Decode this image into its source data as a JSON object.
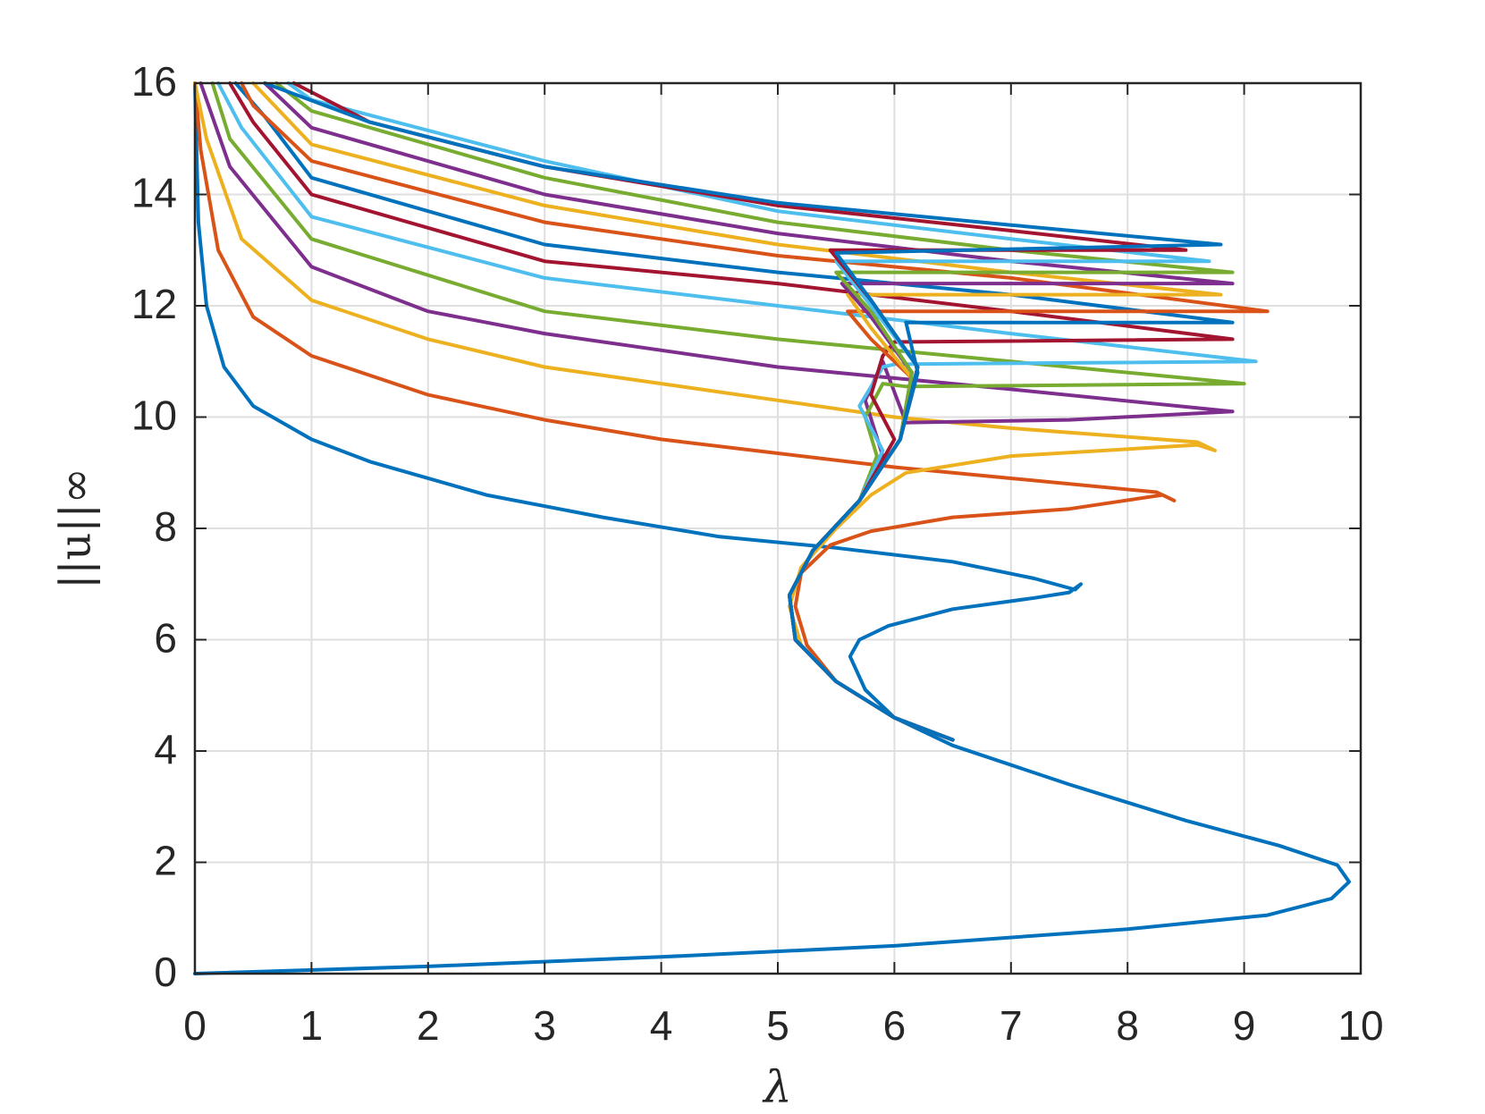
{
  "chart_data": {
    "type": "line",
    "xlabel": "λ",
    "ylabel": "||u||∞",
    "xlim": [
      0,
      10
    ],
    "ylim": [
      0,
      16
    ],
    "xticks": [
      0,
      1,
      2,
      3,
      4,
      5,
      6,
      7,
      8,
      9,
      10
    ],
    "yticks": [
      0,
      2,
      4,
      6,
      8,
      10,
      12,
      14,
      16
    ],
    "grid": true,
    "series": [
      {
        "color": "#0072BD",
        "x": [
          0,
          2,
          4,
          6,
          8,
          9.2,
          9.75,
          9.9,
          9.8,
          9.3,
          8.5,
          7.5,
          6.5,
          6,
          5.75,
          5.62,
          5.7,
          5.95,
          6.5,
          7.2,
          7.5,
          7.6,
          7.55,
          7.2,
          6.5,
          5.5,
          4.5,
          3.5,
          2.5,
          1.5,
          1,
          0.5,
          0.25,
          0.1,
          0.03,
          0
        ],
        "values": [
          0,
          0.13,
          0.3,
          0.5,
          0.8,
          1.05,
          1.35,
          1.65,
          1.95,
          2.3,
          2.75,
          3.4,
          4.1,
          4.6,
          5.1,
          5.7,
          6.0,
          6.25,
          6.55,
          6.75,
          6.85,
          7.0,
          6.9,
          7.1,
          7.4,
          7.65,
          7.85,
          8.2,
          8.6,
          9.2,
          9.6,
          10.2,
          10.9,
          12,
          13.5,
          16
        ]
      },
      {
        "color": "#D95319",
        "x": [
          6.5,
          6,
          5.5,
          5.25,
          5.15,
          5.2,
          5.45,
          5.8,
          6.5,
          7.5,
          8.3,
          8.4,
          8.25,
          7,
          6,
          5,
          4,
          3,
          2,
          1,
          0.5,
          0.2,
          0.05,
          0
        ],
        "values": [
          4.2,
          4.6,
          5.25,
          5.9,
          6.6,
          7.2,
          7.7,
          7.95,
          8.2,
          8.35,
          8.6,
          8.5,
          8.65,
          8.9,
          9.1,
          9.35,
          9.6,
          9.95,
          10.4,
          11.1,
          11.8,
          13,
          14.8,
          16
        ]
      },
      {
        "color": "#EDB120",
        "x": [
          6.5,
          6,
          5.5,
          5.2,
          5.1,
          5.2,
          5.5,
          5.8,
          6.1,
          7,
          8.6,
          8.75,
          8.6,
          7,
          6,
          5,
          4,
          3,
          2,
          1,
          0.4,
          0.1,
          0
        ],
        "values": [
          4.2,
          4.6,
          5.25,
          5.9,
          6.6,
          7.3,
          8.0,
          8.6,
          9.0,
          9.3,
          9.5,
          9.4,
          9.55,
          9.8,
          10.0,
          10.3,
          10.6,
          10.9,
          11.4,
          12.1,
          13.2,
          15,
          16
        ]
      },
      {
        "color": "#7E2F8E",
        "x": [
          6.5,
          6,
          5.5,
          5.15,
          5.1,
          5.3,
          5.7,
          5.9,
          5.75,
          5.9,
          6.1,
          7.5,
          8.9,
          7,
          5,
          3,
          2,
          1,
          0.3,
          0.05
        ],
        "values": [
          4.2,
          4.6,
          5.25,
          6.0,
          6.8,
          7.6,
          8.5,
          9.3,
          10.3,
          11.0,
          9.9,
          9.95,
          10.1,
          10.5,
          10.9,
          11.5,
          11.9,
          12.7,
          14.5,
          16
        ]
      },
      {
        "color": "#77AC30",
        "x": [
          6.5,
          6,
          5.5,
          5.15,
          5.1,
          5.3,
          5.7,
          5.85,
          5.75,
          5.9,
          6.1,
          9,
          7,
          5,
          3,
          1,
          0.3,
          0.15
        ],
        "values": [
          4.2,
          4.6,
          5.25,
          6.0,
          6.8,
          7.6,
          8.5,
          9.3,
          10.0,
          10.6,
          10.55,
          10.6,
          11.0,
          11.4,
          11.9,
          13.2,
          15,
          16
        ]
      },
      {
        "color": "#4DBEEE",
        "x": [
          6.5,
          6,
          5.5,
          5.15,
          5.1,
          5.3,
          5.7,
          5.9,
          5.7,
          5.9,
          6.0,
          9.1,
          7,
          5,
          3,
          1,
          0.4,
          0.2
        ],
        "values": [
          4.2,
          4.6,
          5.25,
          6.0,
          6.8,
          7.6,
          8.5,
          9.4,
          10.2,
          10.9,
          10.95,
          11.0,
          11.5,
          12.0,
          12.5,
          13.6,
          15.2,
          16
        ]
      },
      {
        "color": "#A2142F",
        "x": [
          6.5,
          6,
          5.5,
          5.15,
          5.1,
          5.3,
          5.7,
          6.0,
          5.8,
          5.9,
          6.0,
          8.9,
          7,
          5,
          3,
          1,
          0.5,
          0.3
        ],
        "values": [
          4.2,
          4.6,
          5.25,
          6.0,
          6.8,
          7.6,
          8.5,
          9.6,
          10.4,
          11.1,
          11.35,
          11.4,
          11.9,
          12.4,
          12.8,
          14.0,
          15.3,
          16
        ]
      },
      {
        "color": "#0072BD",
        "x": [
          6.5,
          6,
          5.5,
          5.15,
          5.1,
          5.3,
          5.7,
          6.05,
          6.2,
          6.1,
          8.9,
          7,
          5,
          3,
          1,
          0.6,
          0.35
        ],
        "values": [
          4.2,
          4.6,
          5.25,
          6.0,
          6.8,
          7.6,
          8.5,
          9.6,
          10.8,
          11.7,
          11.7,
          12.2,
          12.6,
          13.1,
          14.3,
          15.4,
          16
        ]
      },
      {
        "color": "#D95319",
        "x": [
          6.5,
          6,
          5.5,
          5.15,
          5.1,
          5.3,
          5.7,
          6.05,
          6.15,
          5.8,
          5.6,
          9.2,
          7,
          5,
          3,
          1,
          0.5,
          0.4
        ],
        "values": [
          4.2,
          4.6,
          5.25,
          6.0,
          6.8,
          7.6,
          8.5,
          9.6,
          10.7,
          11.4,
          11.9,
          11.9,
          12.5,
          12.9,
          13.5,
          14.6,
          15.6,
          16
        ]
      },
      {
        "color": "#EDB120",
        "x": [
          6.5,
          6,
          5.5,
          5.15,
          5.1,
          5.3,
          5.7,
          6.05,
          6.15,
          5.8,
          5.6,
          8.8,
          7,
          5,
          3,
          1,
          0.5
        ],
        "values": [
          4.2,
          4.6,
          5.25,
          6.0,
          6.8,
          7.6,
          8.5,
          9.6,
          10.7,
          11.6,
          12.2,
          12.2,
          12.6,
          13.1,
          13.8,
          14.9,
          16
        ]
      },
      {
        "color": "#7E2F8E",
        "x": [
          6.5,
          6,
          5.5,
          5.15,
          5.1,
          5.3,
          5.7,
          6.05,
          6.15,
          5.8,
          5.55,
          8.9,
          7,
          5,
          3,
          1,
          0.6
        ],
        "values": [
          4.2,
          4.6,
          5.25,
          6.0,
          6.8,
          7.6,
          8.5,
          9.6,
          10.8,
          11.8,
          12.4,
          12.4,
          12.8,
          13.3,
          14.0,
          15.2,
          16
        ]
      },
      {
        "color": "#77AC30",
        "x": [
          6.5,
          6,
          5.5,
          5.15,
          5.1,
          5.3,
          5.7,
          6.05,
          6.15,
          5.8,
          5.5,
          8.9,
          7,
          5,
          3,
          1,
          0.7
        ],
        "values": [
          4.2,
          4.6,
          5.25,
          6.0,
          6.8,
          7.6,
          8.5,
          9.6,
          10.8,
          11.9,
          12.6,
          12.6,
          13.0,
          13.5,
          14.3,
          15.5,
          16
        ]
      },
      {
        "color": "#4DBEEE",
        "x": [
          6.5,
          6,
          5.5,
          5.15,
          5.1,
          5.3,
          5.7,
          6.05,
          6.2,
          5.8,
          5.5,
          8.7,
          7,
          5,
          3,
          1,
          0.8
        ],
        "values": [
          4.2,
          4.6,
          5.25,
          6.0,
          6.8,
          7.6,
          8.5,
          9.6,
          10.9,
          12.0,
          12.8,
          12.8,
          13.2,
          13.7,
          14.6,
          15.7,
          16
        ]
      },
      {
        "color": "#A2142F",
        "x": [
          6.5,
          6,
          5.5,
          5.15,
          5.1,
          5.3,
          5.7,
          6.05,
          6.2,
          5.8,
          5.45,
          8.5,
          7,
          5,
          3,
          1.5,
          0.85
        ],
        "values": [
          4.2,
          4.6,
          5.25,
          6.0,
          6.8,
          7.6,
          8.5,
          9.6,
          10.9,
          12.1,
          13.0,
          13.0,
          13.35,
          13.8,
          14.5,
          15.3,
          16
        ]
      },
      {
        "color": "#0072BD",
        "x": [
          6.5,
          6,
          5.5,
          5.15,
          5.1,
          5.3,
          5.7,
          6.05,
          6.2,
          5.8,
          5.5,
          8.8,
          7,
          5,
          3,
          1.5,
          0.6
        ],
        "values": [
          4.2,
          4.6,
          5.25,
          6.0,
          6.8,
          7.6,
          8.5,
          9.6,
          10.9,
          12.1,
          12.95,
          13.1,
          13.45,
          13.85,
          14.5,
          15.3,
          16
        ]
      }
    ]
  }
}
